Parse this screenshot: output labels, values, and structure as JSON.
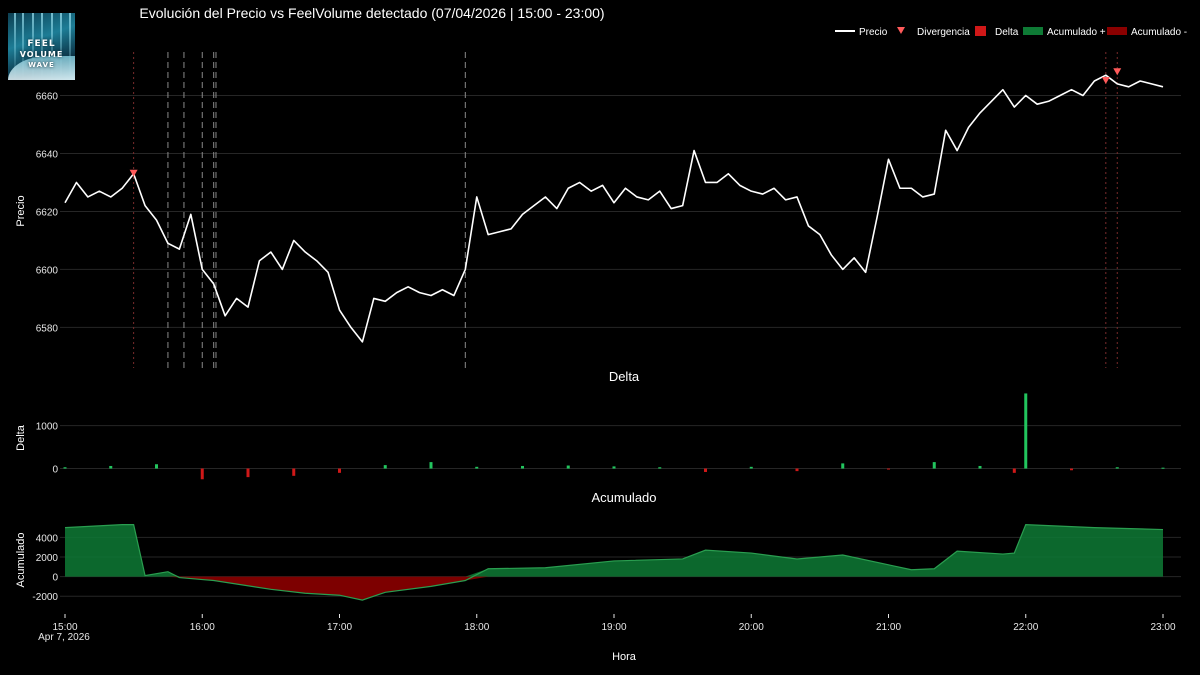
{
  "logo": {
    "lines": [
      "FEEL",
      "VOLUME",
      "WAVE"
    ]
  },
  "chart_data": [
    {
      "type": "line",
      "title": "Evolución del Precio vs FeelVolume detectado (07/04/2026 | 15:00 - 23:00)",
      "ylabel": "Precio",
      "ylim": [
        6566,
        6675
      ],
      "yticks": [
        6580,
        6600,
        6620,
        6640,
        6660
      ],
      "legend": [
        "Precio",
        "Divergencia",
        "Delta",
        "Acumulado +",
        "Acumulado -"
      ],
      "legend_position": "top-right",
      "series": [
        {
          "name": "Precio",
          "x": [
            "15:00",
            "15:05",
            "15:10",
            "15:15",
            "15:20",
            "15:25",
            "15:30",
            "15:35",
            "15:40",
            "15:45",
            "15:50",
            "15:55",
            "16:00",
            "16:05",
            "16:10",
            "16:15",
            "16:20",
            "16:25",
            "16:30",
            "16:35",
            "16:40",
            "16:45",
            "16:50",
            "16:55",
            "17:00",
            "17:05",
            "17:10",
            "17:15",
            "17:20",
            "17:25",
            "17:30",
            "17:35",
            "17:40",
            "17:45",
            "17:50",
            "17:55",
            "18:00",
            "18:05",
            "18:10",
            "18:15",
            "18:20",
            "18:25",
            "18:30",
            "18:35",
            "18:40",
            "18:45",
            "18:50",
            "18:55",
            "19:00",
            "19:05",
            "19:10",
            "19:15",
            "19:20",
            "19:25",
            "19:30",
            "19:35",
            "19:40",
            "19:45",
            "19:50",
            "19:55",
            "20:00",
            "20:05",
            "20:10",
            "20:15",
            "20:20",
            "20:25",
            "20:30",
            "20:35",
            "20:40",
            "20:45",
            "20:50",
            "20:55",
            "21:00",
            "21:05",
            "21:10",
            "21:15",
            "21:20",
            "21:25",
            "21:30",
            "21:35",
            "21:40",
            "21:45",
            "21:50",
            "21:55",
            "22:00",
            "22:05",
            "22:10",
            "22:15",
            "22:20",
            "22:25",
            "22:30",
            "22:35",
            "22:40",
            "22:45",
            "22:50",
            "22:55",
            "23:00"
          ],
          "values": [
            6623,
            6630,
            6625,
            6627,
            6625,
            6628,
            6633,
            6622,
            6617,
            6609,
            6607,
            6619,
            6600,
            6595,
            6584,
            6590,
            6587,
            6603,
            6606,
            6600,
            6610,
            6606,
            6603,
            6599,
            6586,
            6580,
            6575,
            6590,
            6589,
            6592,
            6594,
            6592,
            6591,
            6593,
            6591,
            6600,
            6625,
            6612,
            6613,
            6614,
            6619,
            6622,
            6625,
            6621,
            6628,
            6630,
            6627,
            6629,
            6623,
            6628,
            6625,
            6624,
            6627,
            6621,
            6622,
            6641,
            6630,
            6630,
            6633,
            6629,
            6627,
            6626,
            6628,
            6624,
            6625,
            6615,
            6612,
            6605,
            6600,
            6604,
            6599,
            6618,
            6638,
            6628,
            6628,
            6625,
            6626,
            6648,
            6641,
            6649,
            6654,
            6658,
            6662,
            6656,
            6660,
            6657,
            6658,
            6660,
            6662,
            6660,
            6665,
            6667,
            6664,
            6663,
            6665,
            6664,
            6663
          ]
        },
        {
          "name": "Divergencia",
          "x": [
            "15:30",
            "22:35",
            "22:40"
          ],
          "values": [
            6633,
            6665,
            6668
          ]
        }
      ],
      "vlines_gray": [
        "15:45",
        "15:52",
        "16:00",
        "16:05",
        "16:06",
        "17:55"
      ],
      "vlines_red": [
        "15:30",
        "22:35",
        "22:40"
      ]
    },
    {
      "type": "bar",
      "title": "Delta",
      "ylabel": "Delta",
      "ylim": [
        -500,
        1900
      ],
      "yticks": [
        0,
        1000
      ],
      "x": [
        "15:00",
        "15:20",
        "15:40",
        "16:00",
        "16:20",
        "16:40",
        "17:00",
        "17:20",
        "17:40",
        "18:00",
        "18:20",
        "18:40",
        "19:00",
        "19:20",
        "19:40",
        "20:00",
        "20:20",
        "20:40",
        "21:00",
        "21:20",
        "21:40",
        "21:55",
        "22:00",
        "22:20",
        "22:40",
        "23:00"
      ],
      "values": [
        30,
        60,
        100,
        -250,
        -200,
        -170,
        -100,
        80,
        150,
        40,
        60,
        70,
        50,
        30,
        -80,
        40,
        -60,
        120,
        -20,
        150,
        60,
        -100,
        1750,
        -40,
        30,
        20
      ]
    },
    {
      "type": "area",
      "title": "Acumulado",
      "ylabel": "Acumulado",
      "xlabel": "Hora",
      "ylim": [
        -3000,
        7000
      ],
      "yticks": [
        -2000,
        0,
        2000,
        4000
      ],
      "x": [
        "15:00",
        "15:25",
        "15:30",
        "15:35",
        "15:45",
        "15:50",
        "16:00",
        "16:05",
        "16:30",
        "16:45",
        "17:00",
        "17:10",
        "17:20",
        "17:40",
        "17:55",
        "18:05",
        "18:30",
        "19:00",
        "19:30",
        "19:40",
        "20:00",
        "20:20",
        "20:40",
        "21:00",
        "21:10",
        "21:20",
        "21:30",
        "21:50",
        "21:55",
        "22:00",
        "22:30",
        "23:00"
      ],
      "values": [
        5000,
        5300,
        5300,
        100,
        500,
        -100,
        -300,
        -400,
        -1300,
        -1700,
        -1900,
        -2400,
        -1600,
        -1000,
        -400,
        800,
        900,
        1600,
        1800,
        2700,
        2400,
        1800,
        2200,
        1200,
        700,
        800,
        2600,
        2300,
        2400,
        5300,
        5000,
        4800
      ],
      "xticks": [
        "15:00",
        "16:00",
        "17:00",
        "18:00",
        "19:00",
        "20:00",
        "21:00",
        "22:00",
        "23:00"
      ],
      "date_label": "Apr 7, 2026"
    }
  ],
  "colors": {
    "price": "#ffffff",
    "divergence": "#ff5a5a",
    "delta_pos": "#22c55e",
    "delta_neg": "#d01818",
    "acc_pos": "#0e7a35",
    "acc_neg": "#8b0000",
    "grid": "#262626",
    "axis_text": "#e6e6e6"
  }
}
